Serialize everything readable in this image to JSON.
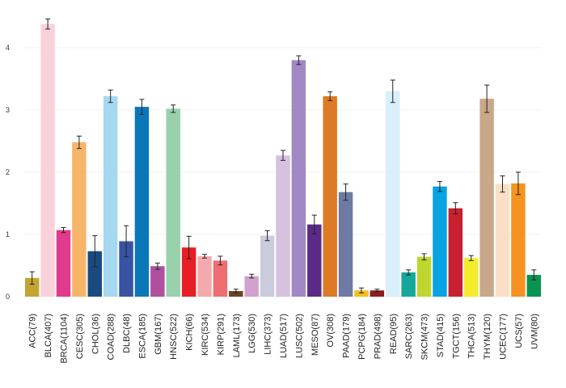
{
  "chart_data": {
    "type": "bar",
    "title": "",
    "xlabel": "",
    "ylabel": "",
    "ylim": [
      0,
      4.5
    ],
    "yticks": [
      0,
      1,
      2,
      3,
      4
    ],
    "grid": "horizontal",
    "legend": "none",
    "categories": [
      "ACC(79)",
      "BLCA(407)",
      "BRCA(1104)",
      "CESC(305)",
      "CHOL(36)",
      "COAD(288)",
      "DLBC(48)",
      "ESCA(185)",
      "GBM(167)",
      "HNSC(522)",
      "KICH(66)",
      "KIRC(534)",
      "KIRP(291)",
      "LAML(173)",
      "LGG(530)",
      "LIHC(373)",
      "LUAD(517)",
      "LUSC(502)",
      "MESO(87)",
      "OV(308)",
      "PAAD(179)",
      "PCPG(184)",
      "PRAD(498)",
      "READ(95)",
      "SARC(263)",
      "SKCM(473)",
      "STAD(415)",
      "TGCT(156)",
      "THCA(513)",
      "THYM(120)",
      "UCEC(177)",
      "UCS(57)",
      "UVM(80)"
    ],
    "values": [
      0.3,
      4.38,
      1.07,
      2.48,
      0.73,
      3.22,
      0.89,
      3.05,
      0.49,
      3.02,
      0.79,
      0.65,
      0.58,
      0.09,
      0.33,
      0.98,
      2.27,
      3.8,
      1.16,
      3.22,
      1.68,
      0.1,
      0.1,
      3.3,
      0.39,
      0.64,
      1.77,
      1.42,
      0.62,
      3.18,
      1.81,
      1.82,
      0.35
    ],
    "errors": [
      0.1,
      0.08,
      0.04,
      0.1,
      0.25,
      0.1,
      0.25,
      0.12,
      0.05,
      0.06,
      0.18,
      0.03,
      0.07,
      0.03,
      0.03,
      0.08,
      0.08,
      0.07,
      0.15,
      0.07,
      0.13,
      0.04,
      0.02,
      0.18,
      0.04,
      0.05,
      0.08,
      0.09,
      0.04,
      0.22,
      0.13,
      0.18,
      0.08
    ],
    "colors": [
      "#C4A532",
      "#F9D1DA",
      "#E23A8C",
      "#F7B569",
      "#1A4B7F",
      "#A6D8F2",
      "#3853A4",
      "#0A77B8",
      "#B04F9E",
      "#98D1AC",
      "#E81E26",
      "#F4AAAD",
      "#EE6E71",
      "#6B4423",
      "#D1A2CE",
      "#CACCDD",
      "#D6C2DF",
      "#A187C3",
      "#5B2A86",
      "#DD7A25",
      "#6D7BA4",
      "#F3BF1A",
      "#8E1D1D",
      "#D9EFFC",
      "#15A79B",
      "#BED630",
      "#08A3E2",
      "#C7202F",
      "#F4EC2C",
      "#C9A88A",
      "#F8DFC6",
      "#F59220",
      "#0B9451"
    ]
  }
}
